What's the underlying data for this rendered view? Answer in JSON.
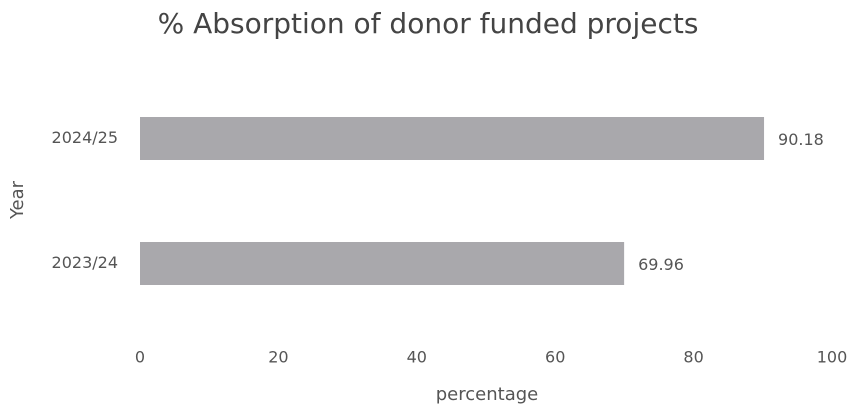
{
  "chart_data": {
    "type": "bar",
    "orientation": "horizontal",
    "title": "% Absorption of donor funded projects",
    "xlabel": "percentage",
    "ylabel": "Year",
    "categories": [
      "2023/24",
      "2024/25"
    ],
    "values": [
      69.96,
      90.18
    ],
    "color": "#a9a8ac",
    "xlim": [
      0,
      100
    ],
    "xticks": [
      0,
      20,
      40,
      60,
      80,
      100
    ],
    "grid": false
  }
}
